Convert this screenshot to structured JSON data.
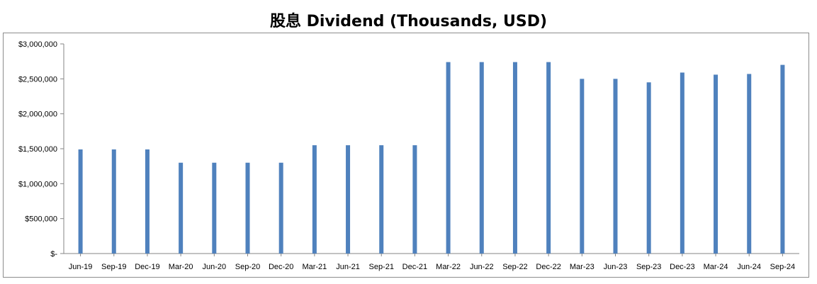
{
  "chart_data": {
    "type": "bar",
    "title": "股息 Dividend (Thousands, USD)",
    "xlabel": "",
    "ylabel": "",
    "categories": [
      "Jun-19",
      "Sep-19",
      "Dec-19",
      "Mar-20",
      "Jun-20",
      "Sep-20",
      "Dec-20",
      "Mar-21",
      "Jun-21",
      "Sep-21",
      "Dec-21",
      "Mar-22",
      "Jun-22",
      "Sep-22",
      "Dec-22",
      "Mar-23",
      "Jun-23",
      "Sep-23",
      "Dec-23",
      "Mar-24",
      "Jun-24",
      "Sep-24"
    ],
    "values": [
      1490000,
      1490000,
      1490000,
      1300000,
      1300000,
      1300000,
      1300000,
      1550000,
      1550000,
      1550000,
      1550000,
      2740000,
      2740000,
      2740000,
      2740000,
      2500000,
      2500000,
      2450000,
      2590000,
      2560000,
      2570000,
      2700000
    ],
    "ylim": [
      0,
      3000000
    ],
    "yticks": [
      0,
      500000,
      1000000,
      1500000,
      2000000,
      2500000,
      3000000
    ],
    "ytick_labels": [
      "$-",
      "$500,000",
      "$1,000,000",
      "$1,500,000",
      "$2,000,000",
      "$2,500,000",
      "$3,000,000"
    ],
    "grid": false,
    "legend": "none",
    "bar_color": "#4f81bd"
  }
}
